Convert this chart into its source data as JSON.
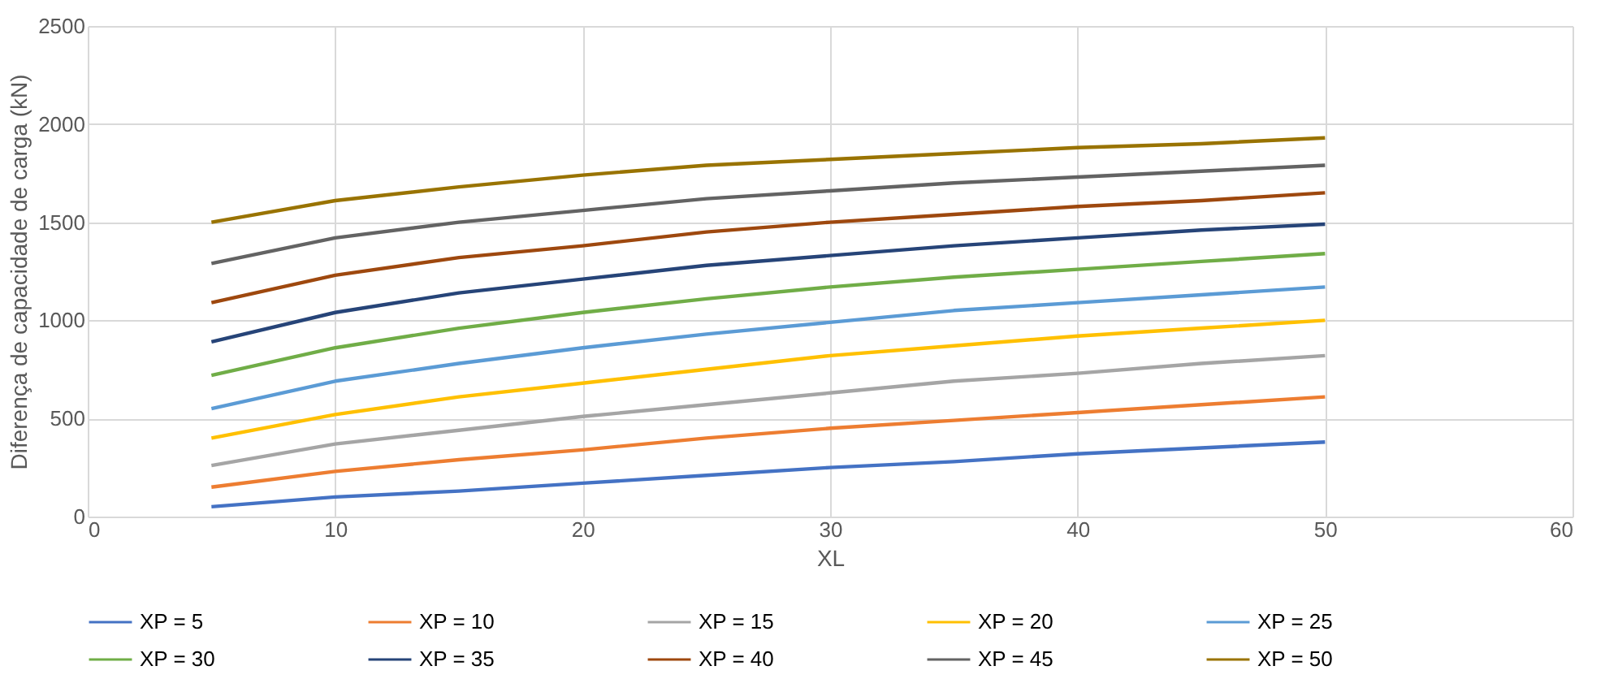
{
  "chart_data": {
    "type": "line",
    "xlabel": "XL",
    "ylabel": "Diferença de capacidade de carga (kN)",
    "x": [
      5,
      10,
      15,
      20,
      25,
      30,
      35,
      40,
      45,
      50
    ],
    "xlim": [
      0,
      60
    ],
    "xticks": [
      0,
      10,
      20,
      30,
      40,
      50,
      60
    ],
    "ylim": [
      0,
      2500
    ],
    "yticks": [
      0,
      500,
      1000,
      1500,
      2000,
      2500
    ],
    "grid": true,
    "legend": "bottom",
    "marker": "none",
    "line_style": "solid",
    "series": [
      {
        "name": "XP = 5",
        "color": "#4472c4",
        "values": [
          50,
          100,
          130,
          170,
          210,
          250,
          280,
          320,
          350,
          380
        ]
      },
      {
        "name": "XP = 10",
        "color": "#ed7d31",
        "values": [
          150,
          230,
          290,
          340,
          400,
          450,
          490,
          530,
          570,
          610
        ]
      },
      {
        "name": "XP = 15",
        "color": "#a5a5a5",
        "values": [
          260,
          370,
          440,
          510,
          570,
          630,
          690,
          730,
          780,
          820
        ]
      },
      {
        "name": "XP = 20",
        "color": "#ffc000",
        "values": [
          400,
          520,
          610,
          680,
          750,
          820,
          870,
          920,
          960,
          1000
        ]
      },
      {
        "name": "XP = 25",
        "color": "#5b9bd5",
        "values": [
          550,
          690,
          780,
          860,
          930,
          990,
          1050,
          1090,
          1130,
          1170
        ]
      },
      {
        "name": "XP = 30",
        "color": "#70ad47",
        "values": [
          720,
          860,
          960,
          1040,
          1110,
          1170,
          1220,
          1260,
          1300,
          1340
        ]
      },
      {
        "name": "XP = 35",
        "color": "#264478",
        "values": [
          890,
          1040,
          1140,
          1210,
          1280,
          1330,
          1380,
          1420,
          1460,
          1490
        ]
      },
      {
        "name": "XP = 40",
        "color": "#9e480e",
        "values": [
          1090,
          1230,
          1320,
          1380,
          1450,
          1500,
          1540,
          1580,
          1610,
          1650
        ]
      },
      {
        "name": "XP = 45",
        "color": "#636363",
        "values": [
          1290,
          1420,
          1500,
          1560,
          1620,
          1660,
          1700,
          1730,
          1760,
          1790
        ]
      },
      {
        "name": "XP = 50",
        "color": "#997300",
        "values": [
          1500,
          1610,
          1680,
          1740,
          1790,
          1820,
          1850,
          1880,
          1900,
          1930
        ]
      }
    ]
  }
}
